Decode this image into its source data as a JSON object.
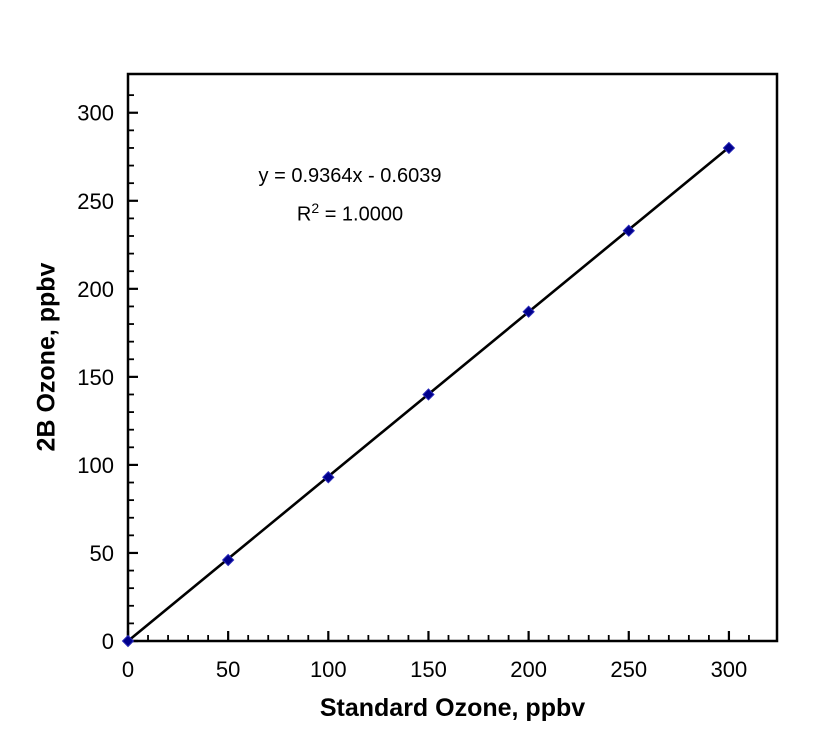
{
  "figure": {
    "background": "#ffffff"
  },
  "annotation": {
    "equation": "y = 0.9364x - 0.6039",
    "r2_base": "R",
    "r2_sup": "2",
    "r2_rest": " = 1.0000"
  },
  "chart_data": {
    "type": "scatter",
    "title": "",
    "xlabel": "Standard Ozone, ppbv",
    "ylabel": "2B Ozone, ppbv",
    "x": [
      0,
      50,
      100,
      150,
      200,
      250,
      300
    ],
    "y": [
      0,
      46,
      93,
      140,
      187,
      233,
      280
    ],
    "trendline": {
      "slope": 0.9364,
      "intercept": -0.6039,
      "r_squared": 1.0,
      "color": "#000000"
    },
    "xticks": [
      0,
      50,
      100,
      150,
      200,
      250,
      300
    ],
    "yticks": [
      0,
      50,
      100,
      150,
      200,
      250,
      300
    ],
    "minor_tick_step": 10,
    "xlim": [
      0,
      324
    ],
    "ylim": [
      0,
      322
    ],
    "grid": false,
    "legend": false,
    "marker": {
      "shape": "diamond",
      "color": "#00008B",
      "edge_color": "#2929b8",
      "size": 11
    },
    "axis_color": "#000000",
    "tick_label_color": "#000000",
    "tick_direction": "in"
  }
}
